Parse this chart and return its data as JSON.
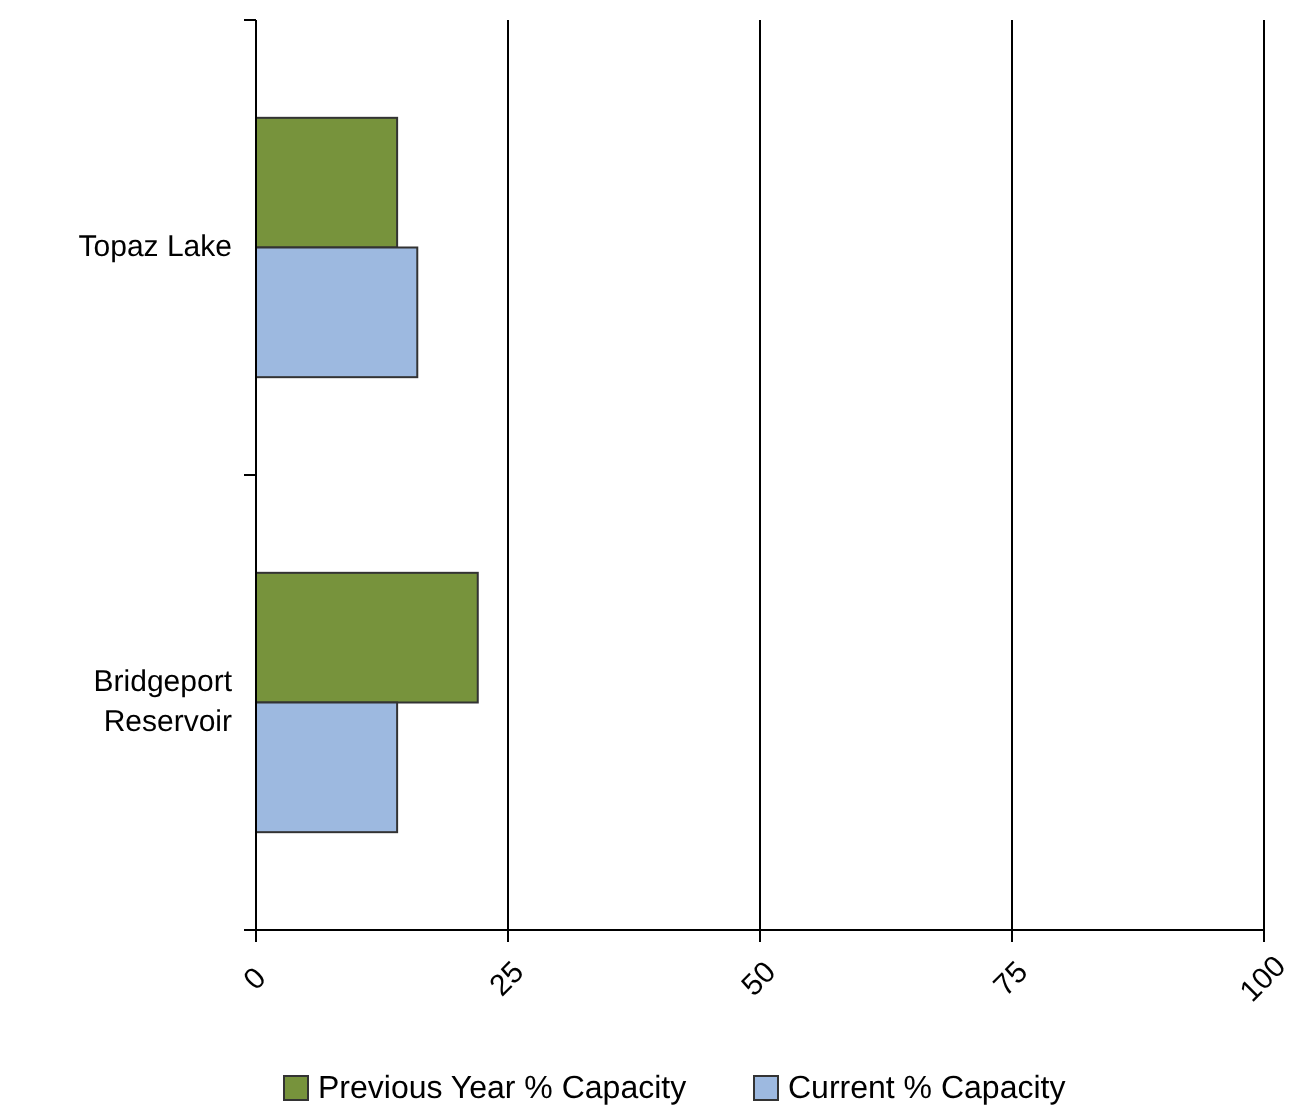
{
  "chart_data": {
    "type": "bar",
    "orientation": "horizontal",
    "categories": [
      "Topaz Lake",
      "Bridgeport Reservoir"
    ],
    "series": [
      {
        "name": "Previous Year % Capacity",
        "color": "#77933c",
        "values": [
          14,
          22
        ]
      },
      {
        "name": "Current % Capacity",
        "color": "#9db9e0",
        "values": [
          16,
          14
        ]
      }
    ],
    "xlim": [
      0,
      100
    ],
    "xticks": [
      0,
      25,
      50,
      75,
      100
    ],
    "grid": "x",
    "legend": "bottom"
  }
}
